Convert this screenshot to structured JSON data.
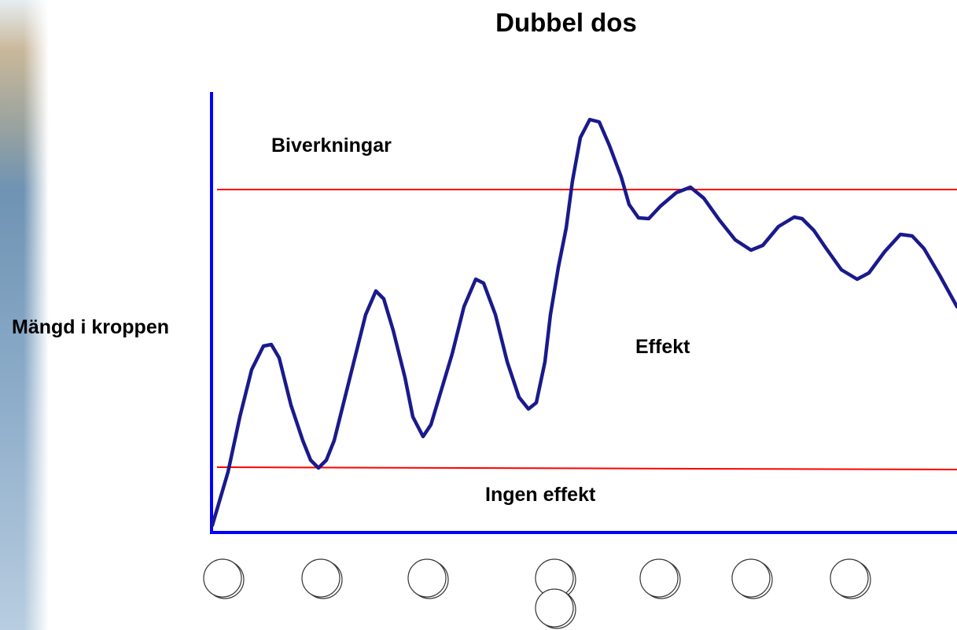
{
  "title": "Dubbel dos",
  "labels": {
    "side_effects": "Biverkningar",
    "y_axis": "Mängd i kroppen",
    "effect": "Effekt",
    "no_effect": "Ingen effekt"
  }
}
